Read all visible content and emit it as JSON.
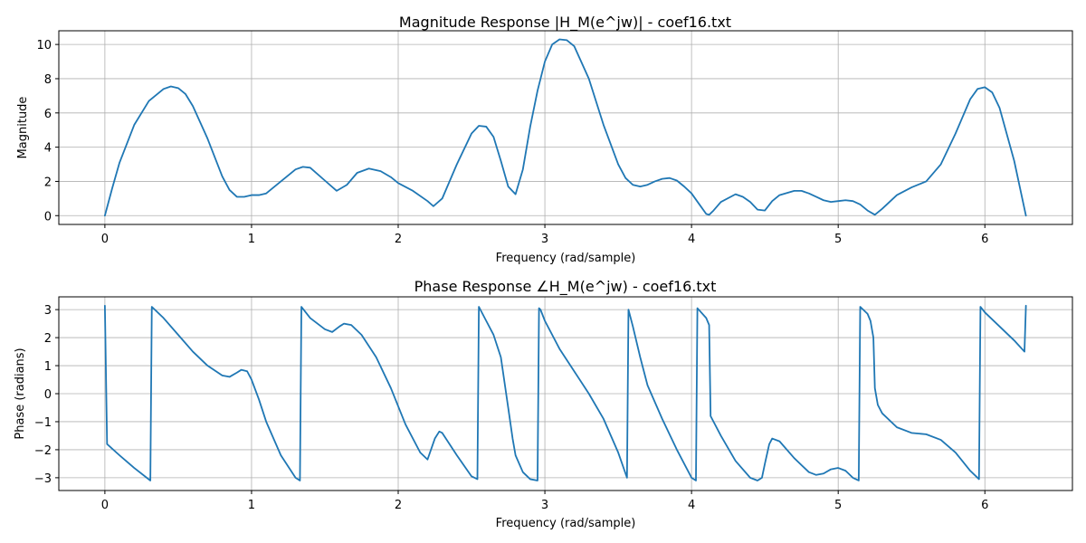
{
  "chart_data": [
    {
      "type": "line",
      "title": "Magnitude Response |H_M(e^jw)| - coef16.txt",
      "xlabel": "Frequency (rad/sample)",
      "ylabel": "Magnitude",
      "xlim": [
        -0.314,
        6.597
      ],
      "ylim": [
        -0.514,
        10.8
      ],
      "xticks": [
        0,
        1,
        2,
        3,
        4,
        5,
        6
      ],
      "yticks": [
        0,
        2,
        4,
        6,
        8,
        10
      ],
      "grid": true,
      "color": "#1f77b4",
      "series": [
        {
          "x": [
            0,
            0.05,
            0.1,
            0.2,
            0.3,
            0.4,
            0.45,
            0.5,
            0.55,
            0.6,
            0.7,
            0.8,
            0.85,
            0.9,
            0.95,
            1.0,
            1.05,
            1.1,
            1.2,
            1.3,
            1.35,
            1.4,
            1.5,
            1.58,
            1.65,
            1.72,
            1.8,
            1.88,
            1.95,
            2.0,
            2.1,
            2.2,
            2.24,
            2.3,
            2.4,
            2.5,
            2.55,
            2.6,
            2.65,
            2.7,
            2.75,
            2.8,
            2.85,
            2.9,
            2.95,
            3.0,
            3.05,
            3.1,
            3.15,
            3.2,
            3.3,
            3.4,
            3.5,
            3.55,
            3.6,
            3.65,
            3.7,
            3.75,
            3.8,
            3.85,
            3.9,
            3.95,
            4.0,
            4.05,
            4.1,
            4.12,
            4.15,
            4.2,
            4.3,
            4.35,
            4.4,
            4.45,
            4.5,
            4.55,
            4.6,
            4.7,
            4.75,
            4.8,
            4.85,
            4.9,
            4.95,
            5.0,
            5.05,
            5.1,
            5.15,
            5.2,
            5.25,
            5.3,
            5.4,
            5.5,
            5.6,
            5.7,
            5.8,
            5.85,
            5.9,
            5.95,
            6.0,
            6.05,
            6.1,
            6.2,
            6.28
          ],
          "y": [
            0,
            1.6,
            3.1,
            5.3,
            6.7,
            7.4,
            7.55,
            7.45,
            7.1,
            6.4,
            4.5,
            2.3,
            1.5,
            1.1,
            1.1,
            1.2,
            1.2,
            1.3,
            2.0,
            2.7,
            2.85,
            2.8,
            2.05,
            1.45,
            1.8,
            2.5,
            2.75,
            2.6,
            2.25,
            1.9,
            1.45,
            0.85,
            0.55,
            1.0,
            3.0,
            4.8,
            5.25,
            5.2,
            4.6,
            3.2,
            1.7,
            1.25,
            2.7,
            5.2,
            7.3,
            9.0,
            10.0,
            10.3,
            10.25,
            9.9,
            8.0,
            5.3,
            3.0,
            2.2,
            1.8,
            1.7,
            1.8,
            2.0,
            2.15,
            2.2,
            2.05,
            1.7,
            1.3,
            0.7,
            0.1,
            0.05,
            0.3,
            0.8,
            1.25,
            1.1,
            0.8,
            0.35,
            0.3,
            0.85,
            1.2,
            1.45,
            1.45,
            1.3,
            1.1,
            0.9,
            0.8,
            0.85,
            0.9,
            0.85,
            0.65,
            0.3,
            0.05,
            0.4,
            1.2,
            1.65,
            2.0,
            3.0,
            4.8,
            5.8,
            6.8,
            7.4,
            7.5,
            7.2,
            6.3,
            3.2,
            0
          ]
        }
      ]
    },
    {
      "type": "line",
      "title": "Phase Response ∠H_M(e^jw) - coef16.txt",
      "xlabel": "Frequency (rad/sample)",
      "ylabel": "Phase (radians)",
      "xlim": [
        -0.314,
        6.597
      ],
      "ylim": [
        -3.456,
        3.456
      ],
      "xticks": [
        0,
        1,
        2,
        3,
        4,
        5,
        6
      ],
      "yticks": [
        -3,
        -2,
        -1,
        0,
        1,
        2,
        3
      ],
      "grid": true,
      "color": "#1f77b4",
      "series": [
        {
          "x": [
            0,
            0.015,
            0.1,
            0.2,
            0.31,
            0.32,
            0.4,
            0.5,
            0.6,
            0.7,
            0.8,
            0.85,
            0.9,
            0.93,
            0.97,
            1.0,
            1.05,
            1.1,
            1.2,
            1.3,
            1.33,
            1.34,
            1.4,
            1.5,
            1.55,
            1.6,
            1.63,
            1.68,
            1.75,
            1.85,
            1.95,
            2.05,
            2.15,
            2.2,
            2.25,
            2.28,
            2.3,
            2.35,
            2.4,
            2.5,
            2.54,
            2.55,
            2.6,
            2.65,
            2.7,
            2.75,
            2.78,
            2.8,
            2.85,
            2.9,
            2.95,
            2.96,
            2.97,
            3.0,
            3.1,
            3.2,
            3.3,
            3.4,
            3.5,
            3.56,
            3.57,
            3.6,
            3.65,
            3.7,
            3.8,
            3.9,
            4.0,
            4.03,
            4.04,
            4.1,
            4.12,
            4.13,
            4.2,
            4.3,
            4.4,
            4.45,
            4.48,
            4.5,
            4.53,
            4.55,
            4.6,
            4.7,
            4.8,
            4.85,
            4.9,
            4.95,
            5.0,
            5.05,
            5.1,
            5.14,
            5.15,
            5.2,
            5.22,
            5.24,
            5.25,
            5.27,
            5.3,
            5.4,
            5.5,
            5.6,
            5.7,
            5.8,
            5.9,
            5.96,
            5.97,
            6.0,
            6.1,
            6.2,
            6.27,
            6.28
          ],
          "y": [
            3.14,
            -1.8,
            -2.2,
            -2.65,
            -3.1,
            3.1,
            2.7,
            2.1,
            1.5,
            1.0,
            0.65,
            0.6,
            0.75,
            0.85,
            0.8,
            0.5,
            -0.2,
            -1.0,
            -2.2,
            -3.0,
            -3.1,
            3.1,
            2.7,
            2.3,
            2.2,
            2.4,
            2.5,
            2.45,
            2.1,
            1.3,
            0.2,
            -1.1,
            -2.1,
            -2.35,
            -1.6,
            -1.35,
            -1.4,
            -1.8,
            -2.2,
            -2.95,
            -3.05,
            3.1,
            2.6,
            2.1,
            1.3,
            -0.5,
            -1.6,
            -2.2,
            -2.8,
            -3.05,
            -3.1,
            3.05,
            3.0,
            2.6,
            1.6,
            0.8,
            0.0,
            -0.9,
            -2.1,
            -3.0,
            3.0,
            2.4,
            1.3,
            0.3,
            -0.9,
            -2.0,
            -3.0,
            -3.1,
            3.05,
            2.7,
            2.45,
            -0.8,
            -1.5,
            -2.4,
            -3.0,
            -3.1,
            -3.0,
            -2.5,
            -1.8,
            -1.6,
            -1.7,
            -2.3,
            -2.8,
            -2.9,
            -2.85,
            -2.7,
            -2.65,
            -2.75,
            -3.0,
            -3.1,
            3.1,
            2.85,
            2.6,
            2.0,
            0.2,
            -0.4,
            -0.7,
            -1.2,
            -1.4,
            -1.45,
            -1.65,
            -2.1,
            -2.75,
            -3.05,
            3.1,
            2.9,
            2.4,
            1.9,
            1.5,
            3.14
          ]
        }
      ]
    }
  ]
}
